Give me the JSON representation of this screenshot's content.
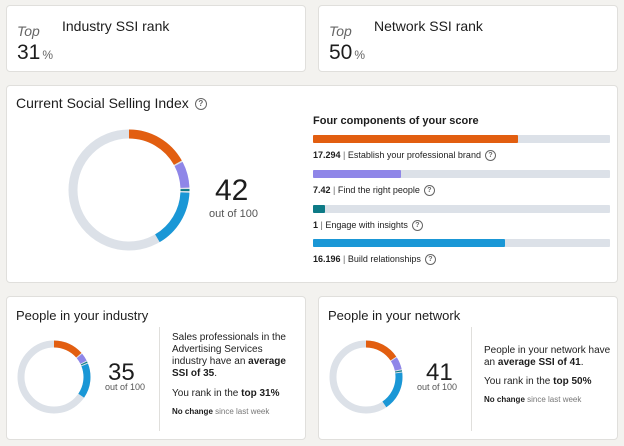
{
  "rank_cards": {
    "industry": {
      "top_label": "Top",
      "title": "Industry SSI rank",
      "value": "31",
      "unit": "%"
    },
    "network": {
      "top_label": "Top",
      "title": "Network SSI rank",
      "value": "50",
      "unit": "%"
    }
  },
  "ssi": {
    "title": "Current Social Selling Index",
    "score": "42",
    "out_of": "out of 100",
    "components_title": "Four components of your score",
    "components": [
      {
        "value": "17.294",
        "label": "Establish your professional brand",
        "max": 25,
        "score": 17.294,
        "color": "#e25e10"
      },
      {
        "value": "7.42",
        "label": "Find the right people",
        "max": 25,
        "score": 7.42,
        "color": "#8f86e8"
      },
      {
        "value": "1",
        "label": "Engage with insights",
        "max": 25,
        "score": 1,
        "color": "#0d7a86"
      },
      {
        "value": "16.196",
        "label": "Build relationships",
        "max": 25,
        "score": 16.196,
        "color": "#1a97d6"
      }
    ],
    "track_color": "#dce1e8"
  },
  "industry_panel": {
    "title": "People in your industry",
    "score": "35",
    "out_of": "out of 100",
    "desc_prefix": "Sales professionals in the Advertising Services industry have an ",
    "desc_bold": "average SSI of 35",
    "desc_suffix": ".",
    "rank_prefix": "You rank in the ",
    "rank_bold": "top 31%",
    "change_bold": "No change",
    "change_rest": " since last week",
    "segments": [
      14,
      4,
      1,
      16
    ]
  },
  "network_panel": {
    "title": "People in your network",
    "score": "41",
    "out_of": "out of 100",
    "desc_prefix": "People in your network have an ",
    "desc_bold": "average SSI of 41",
    "desc_suffix": ".",
    "rank_prefix": "You rank in the ",
    "rank_bold": "top 50%",
    "change_bold": "No change",
    "change_rest": " since last week",
    "segments": [
      16,
      6,
      1,
      18
    ]
  },
  "help_icon": "help-circle-icon"
}
